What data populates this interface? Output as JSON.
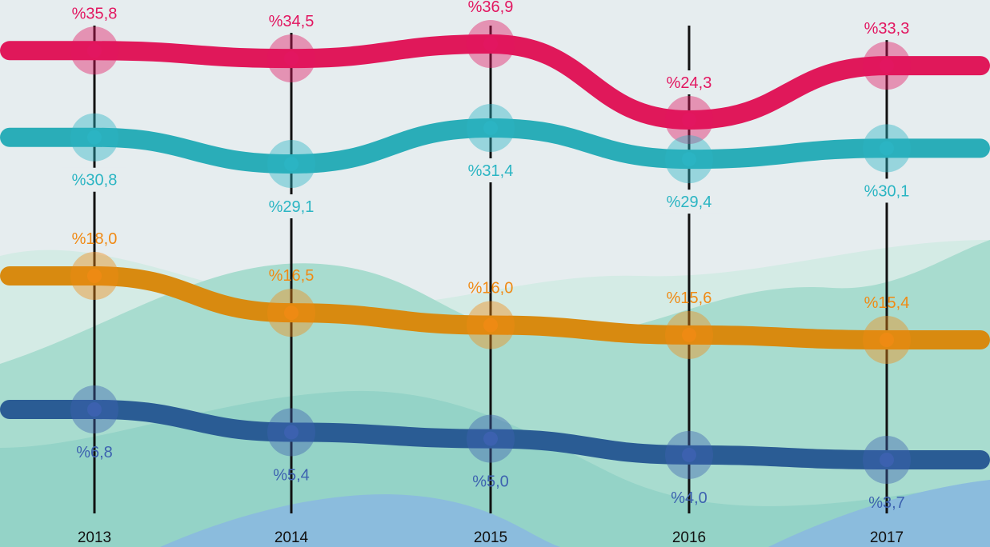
{
  "chart_data": {
    "type": "line",
    "x": [
      "2013",
      "2014",
      "2015",
      "2016",
      "2017"
    ],
    "series": [
      {
        "values": [
          35.8,
          34.5,
          36.9,
          24.3,
          33.3
        ],
        "labels": [
          "%35,8",
          "%34,5",
          "%36,9",
          "%24,3",
          "%33,3"
        ],
        "color": "#e0185a",
        "label_color": "#e21660"
      },
      {
        "values": [
          30.8,
          29.1,
          31.4,
          29.4,
          30.1
        ],
        "labels": [
          "%30,8",
          "%29,1",
          "%31,4",
          "%29,4",
          "%30,1"
        ],
        "color": "#2aadb8",
        "label_color": "#2bb5c3"
      },
      {
        "values": [
          18.0,
          16.5,
          16.0,
          15.6,
          15.4
        ],
        "labels": [
          "%18,0",
          "%16,5",
          "%16,0",
          "%15,6",
          "%15,4"
        ],
        "color": "#d88a10",
        "label_color": "#f08a14"
      },
      {
        "values": [
          6.8,
          5.4,
          5.0,
          4.0,
          3.7
        ],
        "labels": [
          "%6,8",
          "%5,4",
          "%5,0",
          "%4,0",
          "%3,7"
        ],
        "color": "#2a5c94",
        "label_color": "#3d62b0"
      }
    ],
    "grid": false,
    "legend": "none"
  }
}
